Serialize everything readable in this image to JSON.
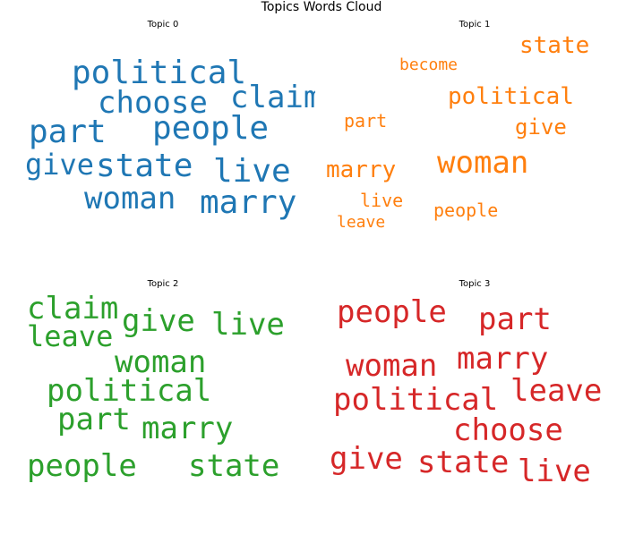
{
  "title": "Topics Words Cloud",
  "chart_data": {
    "type": "wordcloud",
    "title": "Topics Words Cloud",
    "topics": [
      {
        "name": "Topic 0",
        "color": "#1f77b4",
        "words": [
          {
            "text": "political",
            "weight": 5
          },
          {
            "text": "choose",
            "weight": 5
          },
          {
            "text": "claim",
            "weight": 5
          },
          {
            "text": "part",
            "weight": 5
          },
          {
            "text": "people",
            "weight": 5
          },
          {
            "text": "give",
            "weight": 4
          },
          {
            "text": "state",
            "weight": 5
          },
          {
            "text": "live",
            "weight": 5
          },
          {
            "text": "woman",
            "weight": 5
          },
          {
            "text": "marry",
            "weight": 5
          }
        ]
      },
      {
        "name": "Topic 1",
        "color": "#ff7f0e",
        "words": [
          {
            "text": "state",
            "weight": 4
          },
          {
            "text": "become",
            "weight": 2
          },
          {
            "text": "political",
            "weight": 4
          },
          {
            "text": "part",
            "weight": 3
          },
          {
            "text": "give",
            "weight": 3
          },
          {
            "text": "marry",
            "weight": 4
          },
          {
            "text": "woman",
            "weight": 5
          },
          {
            "text": "live",
            "weight": 3
          },
          {
            "text": "people",
            "weight": 3
          },
          {
            "text": "leave",
            "weight": 2
          }
        ]
      },
      {
        "name": "Topic 2",
        "color": "#2ca02c",
        "words": [
          {
            "text": "claim",
            "weight": 5
          },
          {
            "text": "leave",
            "weight": 5
          },
          {
            "text": "give",
            "weight": 5
          },
          {
            "text": "live",
            "weight": 5
          },
          {
            "text": "woman",
            "weight": 5
          },
          {
            "text": "political",
            "weight": 5
          },
          {
            "text": "part",
            "weight": 5
          },
          {
            "text": "marry",
            "weight": 5
          },
          {
            "text": "people",
            "weight": 5
          },
          {
            "text": "state",
            "weight": 5
          }
        ]
      },
      {
        "name": "Topic 3",
        "color": "#d62728",
        "words": [
          {
            "text": "people",
            "weight": 5
          },
          {
            "text": "part",
            "weight": 5
          },
          {
            "text": "woman",
            "weight": 5
          },
          {
            "text": "marry",
            "weight": 5
          },
          {
            "text": "political",
            "weight": 5
          },
          {
            "text": "leave",
            "weight": 5
          },
          {
            "text": "choose",
            "weight": 5
          },
          {
            "text": "give",
            "weight": 5
          },
          {
            "text": "state",
            "weight": 5
          },
          {
            "text": "live",
            "weight": 5
          }
        ]
      }
    ]
  }
}
